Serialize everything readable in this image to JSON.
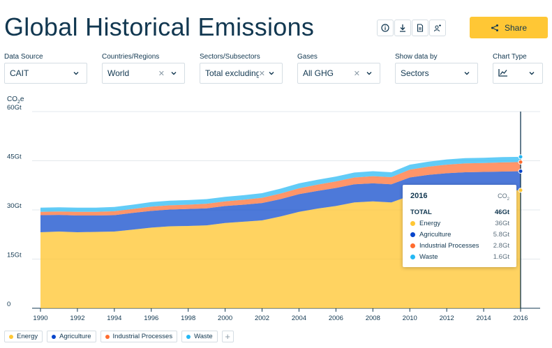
{
  "page": {
    "title": "Global Historical Emissions"
  },
  "toolbar": {
    "icons": [
      "info-icon",
      "download-icon",
      "document-icon",
      "add-user-icon"
    ],
    "share_label": "Share"
  },
  "filters": [
    {
      "label": "Data Source",
      "value": "CAIT",
      "clearable": false
    },
    {
      "label": "Countries/Regions",
      "value": "World",
      "clearable": true
    },
    {
      "label": "Sectors/Subsectors",
      "value": "Total excluding L…",
      "clearable": true
    },
    {
      "label": "Gases",
      "value": "All GHG",
      "clearable": true
    },
    {
      "label": "Show data by",
      "value": "Sectors",
      "clearable": false
    },
    {
      "label": "Chart Type",
      "value": "line-chart-icon",
      "clearable": false
    }
  ],
  "chart_data": {
    "type": "area",
    "stacked": true,
    "unit_label_main": "CO",
    "unit_label_sub": "2",
    "unit_label_tail": "e",
    "ylim": [
      0,
      60
    ],
    "yticks": [
      0,
      15,
      30,
      45,
      60
    ],
    "ytick_labels": [
      "0",
      "15Gt",
      "30Gt",
      "45Gt",
      "60Gt"
    ],
    "xticks": [
      1990,
      1992,
      1994,
      1996,
      1998,
      2000,
      2002,
      2004,
      2006,
      2008,
      2010,
      2012,
      2014,
      2016
    ],
    "x": [
      1990,
      1991,
      1992,
      1993,
      1994,
      1995,
      1996,
      1997,
      1998,
      1999,
      2000,
      2001,
      2002,
      2003,
      2004,
      2005,
      2006,
      2007,
      2008,
      2009,
      2010,
      2011,
      2012,
      2013,
      2014,
      2015,
      2016
    ],
    "grid": true,
    "series": [
      {
        "name": "Energy",
        "color": "#ffc735",
        "values": [
          23.2,
          23.4,
          23.2,
          23.3,
          23.4,
          24.0,
          24.6,
          25.0,
          25.1,
          25.3,
          26.0,
          26.4,
          26.8,
          28.0,
          29.4,
          30.4,
          31.2,
          32.3,
          32.6,
          32.3,
          34.3,
          35.1,
          35.5,
          35.8,
          35.9,
          35.9,
          36.0
        ]
      },
      {
        "name": "Agriculture",
        "color": "#0845cb",
        "values": [
          5.2,
          5.1,
          5.1,
          5.0,
          5.0,
          5.1,
          5.1,
          5.1,
          5.2,
          5.2,
          5.2,
          5.2,
          5.3,
          5.3,
          5.4,
          5.4,
          5.5,
          5.5,
          5.5,
          5.5,
          5.6,
          5.6,
          5.7,
          5.7,
          5.7,
          5.8,
          5.8
        ]
      },
      {
        "name": "Industrial Processes",
        "color": "#ff6c2f",
        "values": [
          1.0,
          1.0,
          1.1,
          1.1,
          1.2,
          1.2,
          1.3,
          1.3,
          1.3,
          1.4,
          1.4,
          1.5,
          1.6,
          1.7,
          1.8,
          1.9,
          2.0,
          2.1,
          2.2,
          2.2,
          2.4,
          2.5,
          2.6,
          2.7,
          2.7,
          2.8,
          2.8
        ]
      },
      {
        "name": "Waste",
        "color": "#25b8f4",
        "values": [
          1.3,
          1.3,
          1.3,
          1.3,
          1.3,
          1.3,
          1.4,
          1.4,
          1.4,
          1.4,
          1.4,
          1.4,
          1.4,
          1.5,
          1.5,
          1.5,
          1.5,
          1.5,
          1.5,
          1.5,
          1.5,
          1.5,
          1.6,
          1.6,
          1.6,
          1.6,
          1.6
        ]
      }
    ],
    "highlight_year": 2016
  },
  "tooltip": {
    "year": "2016",
    "unit_main": "CO",
    "unit_sub": "2",
    "total_label": "TOTAL",
    "total_value": "46Gt",
    "rows": [
      {
        "name": "Energy",
        "value": "36Gt",
        "color": "#ffc735"
      },
      {
        "name": "Agriculture",
        "value": "5.8Gt",
        "color": "#0845cb"
      },
      {
        "name": "Industrial Processes",
        "value": "2.8Gt",
        "color": "#ff6c2f"
      },
      {
        "name": "Waste",
        "value": "1.6Gt",
        "color": "#25b8f4"
      }
    ]
  },
  "legend": [
    {
      "name": "Energy",
      "color": "#ffc735"
    },
    {
      "name": "Agriculture",
      "color": "#0845cb"
    },
    {
      "name": "Industrial Processes",
      "color": "#ff6c2f"
    },
    {
      "name": "Waste",
      "color": "#25b8f4"
    }
  ]
}
